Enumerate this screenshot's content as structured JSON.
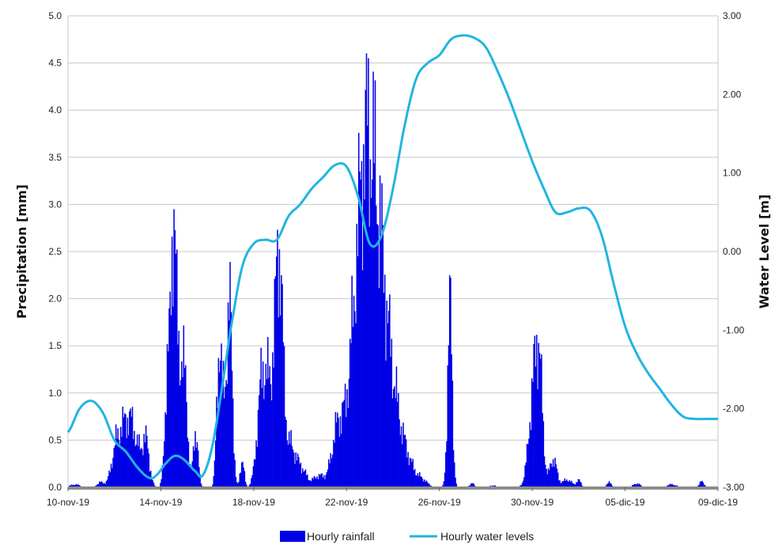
{
  "chart_data": {
    "type": "bar+line",
    "title": "",
    "ylabel": "Precipitation [mm]",
    "y2label": "Water Level  [m]",
    "ylim": [
      0,
      5
    ],
    "y2lim": [
      -3,
      3
    ],
    "y_ticks": [
      "0.0",
      "0.5",
      "1.0",
      "1.5",
      "2.0",
      "2.5",
      "3.0",
      "3.5",
      "4.0",
      "4.5",
      "5.0"
    ],
    "y2_ticks": [
      "-3.00",
      "-2.00",
      "-1.00",
      "0.00",
      "1.00",
      "2.00",
      "3.00"
    ],
    "x_ticks": [
      "10-nov-19",
      "14-nov-19",
      "18-nov-19",
      "22-nov-19",
      "26-nov-19",
      "30-nov-19",
      "05-dic-19",
      "09-dic-19"
    ],
    "x_tick_days": [
      0,
      4,
      8,
      12,
      16,
      20,
      24,
      28
    ],
    "xlim_days": [
      0,
      28
    ],
    "grid": true,
    "legend_position": "bottom",
    "colors": {
      "rainfall": "#0000e6",
      "water": "#21b5e0",
      "grid": "#c8c8c8",
      "baseline": "#8c8c8c"
    },
    "series": [
      {
        "name": "Hourly rainfall",
        "type": "bar",
        "peaks": [
          [
            0.3,
            0.03,
            0.2
          ],
          [
            1.4,
            0.05,
            0.15
          ],
          [
            2.05,
            0.28,
            0.2
          ],
          [
            2.5,
            0.62,
            0.3
          ],
          [
            2.9,
            0.3,
            0.25
          ],
          [
            3.35,
            0.45,
            0.15
          ],
          [
            4.3,
            1.3,
            0.12
          ],
          [
            4.55,
            2.55,
            0.1
          ],
          [
            4.8,
            1.2,
            0.15
          ],
          [
            5.05,
            0.85,
            0.12
          ],
          [
            5.5,
            0.6,
            0.1
          ],
          [
            6.5,
            1.35,
            0.1
          ],
          [
            6.8,
            1.05,
            0.15
          ],
          [
            7.0,
            1.38,
            0.1
          ],
          [
            7.5,
            0.3,
            0.08
          ],
          [
            8.35,
            0.95,
            0.2
          ],
          [
            8.85,
            1.05,
            0.3
          ],
          [
            9.1,
            1.75,
            0.15
          ],
          [
            9.6,
            0.4,
            0.25
          ],
          [
            10.1,
            0.15,
            0.2
          ],
          [
            10.8,
            0.12,
            0.25
          ],
          [
            11.6,
            0.55,
            0.25
          ],
          [
            12.5,
            1.7,
            0.4
          ],
          [
            12.95,
            2.5,
            0.35
          ],
          [
            13.45,
            1.4,
            0.3
          ],
          [
            13.9,
            0.85,
            0.35
          ],
          [
            14.5,
            0.3,
            0.4
          ],
          [
            15.3,
            0.05,
            0.2
          ],
          [
            16.45,
            1.9,
            0.1
          ],
          [
            17.4,
            0.04,
            0.1
          ],
          [
            18.3,
            0.02,
            0.15
          ],
          [
            20.05,
            0.95,
            0.2
          ],
          [
            20.3,
            1.05,
            0.15
          ],
          [
            20.9,
            0.3,
            0.15
          ],
          [
            21.5,
            0.08,
            0.2
          ],
          [
            22.0,
            0.07,
            0.1
          ],
          [
            23.3,
            0.05,
            0.1
          ],
          [
            24.5,
            0.04,
            0.15
          ],
          [
            26.0,
            0.03,
            0.2
          ],
          [
            27.3,
            0.06,
            0.1
          ]
        ]
      },
      {
        "name": "Hourly water levels",
        "type": "line",
        "axis": "right",
        "x": [
          0,
          0.5,
          1.0,
          1.5,
          2.0,
          2.5,
          3.0,
          3.5,
          3.8,
          4.2,
          4.6,
          5.0,
          5.5,
          5.8,
          6.2,
          6.6,
          7.0,
          7.5,
          8.0,
          8.5,
          9.0,
          9.5,
          10.0,
          10.5,
          11.0,
          11.5,
          12.0,
          12.5,
          13.0,
          13.5,
          14.0,
          14.5,
          15.0,
          15.5,
          16.0,
          16.5,
          17.0,
          17.5,
          18.0,
          18.5,
          19.0,
          19.5,
          20.0,
          20.5,
          21.0,
          21.5,
          22.0,
          22.5,
          23.0,
          23.5,
          24.0,
          24.5,
          25.0,
          25.5,
          26.0,
          26.5,
          27.0,
          27.5,
          28.0
        ],
        "values": [
          -2.3,
          -2.0,
          -1.9,
          -2.05,
          -2.4,
          -2.55,
          -2.75,
          -2.88,
          -2.85,
          -2.7,
          -2.6,
          -2.65,
          -2.8,
          -2.85,
          -2.5,
          -1.8,
          -1.0,
          -0.2,
          0.1,
          0.15,
          0.15,
          0.45,
          0.6,
          0.8,
          0.95,
          1.1,
          1.08,
          0.7,
          0.1,
          0.2,
          0.8,
          1.6,
          2.2,
          2.4,
          2.5,
          2.7,
          2.75,
          2.72,
          2.6,
          2.3,
          1.95,
          1.55,
          1.15,
          0.8,
          0.5,
          0.5,
          0.55,
          0.52,
          0.2,
          -0.4,
          -0.95,
          -1.3,
          -1.55,
          -1.75,
          -1.95,
          -2.1,
          -2.13,
          -2.13,
          -2.13
        ]
      }
    ],
    "legend": [
      {
        "label": "Hourly rainfall",
        "kind": "bar"
      },
      {
        "label": "Hourly water levels",
        "kind": "line"
      }
    ]
  }
}
